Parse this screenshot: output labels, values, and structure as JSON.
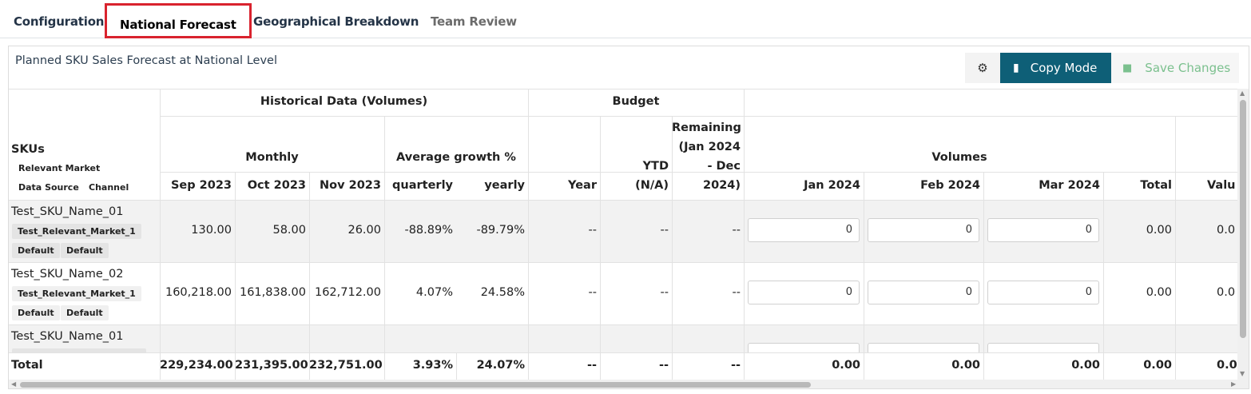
{
  "tabs": [
    {
      "label": "Configuration"
    },
    {
      "label": "National Forecast"
    },
    {
      "label": "Geographical Breakdown"
    },
    {
      "label": "Team Review"
    }
  ],
  "panel": {
    "title": "Planned SKU Sales Forecast at National Level",
    "copy_mode_label": "Copy Mode",
    "save_changes_label": "Save Changes"
  },
  "table": {
    "groups": {
      "historical": "Historical Data (Volumes)",
      "budget": "Budget",
      "monthly": "Monthly",
      "avg_growth": "Average growth %",
      "remaining": "Remaining (Jan 2024 - Dec 2024)",
      "volumes": "Volumes",
      "value_trunc": "Valu"
    },
    "skus_header": "SKUs",
    "sku_tags": {
      "relevant_market": "Relevant Market",
      "data_source": "Data Source",
      "channel": "Channel"
    },
    "columns": {
      "sep": "Sep 2023",
      "oct": "Oct 2023",
      "nov": "Nov 2023",
      "quarterly": "quarterly",
      "yearly": "yearly",
      "year": "Year",
      "ytd": "YTD",
      "ytd_sub": "(N/A)",
      "remaining_l1": "Remaining",
      "remaining_l2": "(Jan 2024",
      "remaining_l3": "- Dec",
      "remaining_l4": "2024)",
      "jan": "Jan 2024",
      "feb": "Feb 2024",
      "mar": "Mar 2024",
      "total": "Total"
    },
    "rows": [
      {
        "name": "Test_SKU_Name_01",
        "market": "Test_Relevant_Market_1",
        "source": "Default",
        "channel": "Default",
        "sep": "130.00",
        "oct": "58.00",
        "nov": "26.00",
        "quarterly": "-88.89%",
        "yearly": "-89.79%",
        "year": "--",
        "ytd": "--",
        "remaining": "--",
        "jan": "0",
        "feb": "0",
        "mar": "0",
        "total": "0.00",
        "value": "0.0"
      },
      {
        "name": "Test_SKU_Name_02",
        "market": "Test_Relevant_Market_1",
        "source": "Default",
        "channel": "Default",
        "sep": "160,218.00",
        "oct": "161,838.00",
        "nov": "162,712.00",
        "quarterly": "4.07%",
        "yearly": "24.58%",
        "year": "--",
        "ytd": "--",
        "remaining": "--",
        "jan": "0",
        "feb": "0",
        "mar": "0",
        "total": "0.00",
        "value": "0.0"
      },
      {
        "name": "Test_SKU_Name_01"
      }
    ],
    "totals": {
      "label": "Total",
      "sep": "229,234.00",
      "oct": "231,395.00",
      "nov": "232,751.00",
      "quarterly": "3.93%",
      "yearly": "24.07%",
      "year": "--",
      "ytd": "--",
      "remaining": "--",
      "jan": "0.00",
      "feb": "0.00",
      "mar": "0.00",
      "total": "0.00",
      "value": "0.0"
    }
  }
}
